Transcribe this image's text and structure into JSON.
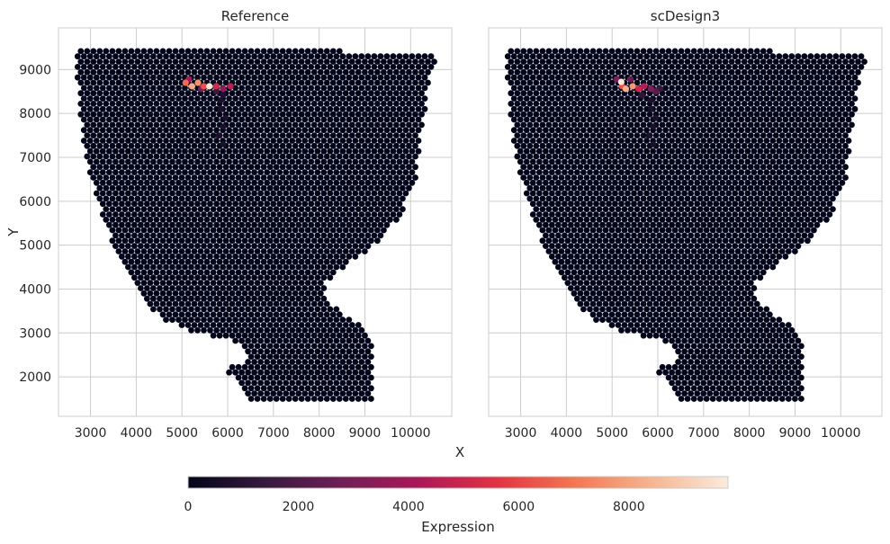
{
  "chart_data": {
    "type": "scatter",
    "xlabel": "X",
    "ylabel": "Y",
    "xlim": [
      2300,
      10900
    ],
    "ylim": [
      1100,
      9950
    ],
    "xticks": [
      3000,
      4000,
      5000,
      6000,
      7000,
      8000,
      9000,
      10000
    ],
    "yticks": [
      2000,
      3000,
      4000,
      5000,
      6000,
      7000,
      8000,
      9000
    ],
    "grid": true,
    "panels": [
      {
        "title": "Reference",
        "hotspots": [
          {
            "x": 5080,
            "y": 8700,
            "value": 6800
          },
          {
            "x": 5220,
            "y": 8620,
            "value": 8200
          },
          {
            "x": 5350,
            "y": 8700,
            "value": 7600
          },
          {
            "x": 5480,
            "y": 8620,
            "value": 6200
          },
          {
            "x": 5600,
            "y": 8620,
            "value": 9700
          },
          {
            "x": 5750,
            "y": 8620,
            "value": 5200
          },
          {
            "x": 5900,
            "y": 8560,
            "value": 3600
          },
          {
            "x": 6060,
            "y": 8620,
            "value": 4600
          },
          {
            "x": 5150,
            "y": 8780,
            "value": 3900
          },
          {
            "x": 5420,
            "y": 8560,
            "value": 3000
          },
          {
            "x": 5750,
            "y": 8500,
            "value": 1500
          },
          {
            "x": 5900,
            "y": 8420,
            "value": 800
          }
        ]
      },
      {
        "title": "scDesign3",
        "hotspots": [
          {
            "x": 5200,
            "y": 8720,
            "value": 9700
          },
          {
            "x": 5300,
            "y": 8560,
            "value": 8300
          },
          {
            "x": 5450,
            "y": 8620,
            "value": 7800
          },
          {
            "x": 5220,
            "y": 8620,
            "value": 6200
          },
          {
            "x": 5580,
            "y": 8560,
            "value": 5000
          },
          {
            "x": 5700,
            "y": 8620,
            "value": 4400
          },
          {
            "x": 5850,
            "y": 8560,
            "value": 3200
          },
          {
            "x": 5100,
            "y": 8780,
            "value": 3000
          },
          {
            "x": 5950,
            "y": 8500,
            "value": 2200
          },
          {
            "x": 5400,
            "y": 8780,
            "value": 2600
          },
          {
            "x": 6050,
            "y": 8560,
            "value": 1500
          },
          {
            "x": 5650,
            "y": 8420,
            "value": 1200
          }
        ]
      }
    ],
    "colorbar": {
      "label": "Expression",
      "min": 0,
      "max": 9800,
      "ticks": [
        0,
        2000,
        4000,
        6000,
        8000
      ],
      "colors": [
        "#03051a",
        "#36193e",
        "#701f57",
        "#ad1759",
        "#e13342",
        "#f37651",
        "#f6b48f",
        "#faebdd"
      ]
    }
  }
}
